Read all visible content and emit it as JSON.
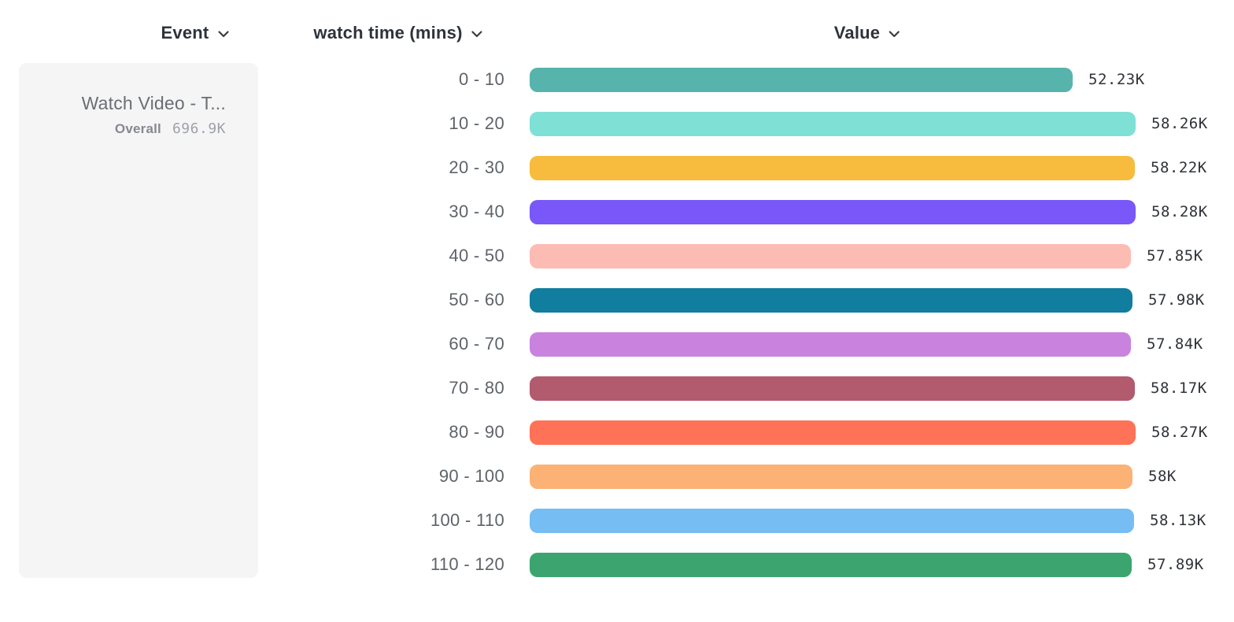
{
  "header": {
    "columns": [
      {
        "id": "event",
        "label": "Event"
      },
      {
        "id": "breakdown",
        "label": "watch time (mins)"
      },
      {
        "id": "value",
        "label": "Value"
      }
    ]
  },
  "event_panel": {
    "event_name": "Watch Video - T...",
    "overall_label": "Overall",
    "overall_value": "696.9K"
  },
  "chart_data": {
    "type": "bar",
    "orientation": "horizontal",
    "title": "",
    "xlabel": "",
    "ylabel": "watch time (mins)",
    "xlim": [
      0,
      58280
    ],
    "grid": false,
    "legend": false,
    "categories": [
      "0 - 10",
      "10 - 20",
      "20 - 30",
      "30 - 40",
      "40 - 50",
      "50 - 60",
      "60 - 70",
      "70 - 80",
      "80 - 90",
      "90 - 100",
      "100 - 110",
      "110 - 120"
    ],
    "values": [
      52230,
      58260,
      58220,
      58280,
      57850,
      57980,
      57840,
      58170,
      58270,
      58000,
      58130,
      57890
    ],
    "display_values": [
      "52.23K",
      "58.26K",
      "58.22K",
      "58.28K",
      "57.85K",
      "57.98K",
      "57.84K",
      "58.17K",
      "58.27K",
      "58K",
      "58.13K",
      "57.89K"
    ],
    "colors": [
      "#57B4AC",
      "#7FE0D6",
      "#F7BC3E",
      "#7957F8",
      "#FCBCB4",
      "#117D9F",
      "#C983DF",
      "#B25A6E",
      "#FE7257",
      "#FCB175",
      "#75BDF3",
      "#3CA56F"
    ]
  },
  "icons": {
    "dropdown": "chevron-down"
  }
}
